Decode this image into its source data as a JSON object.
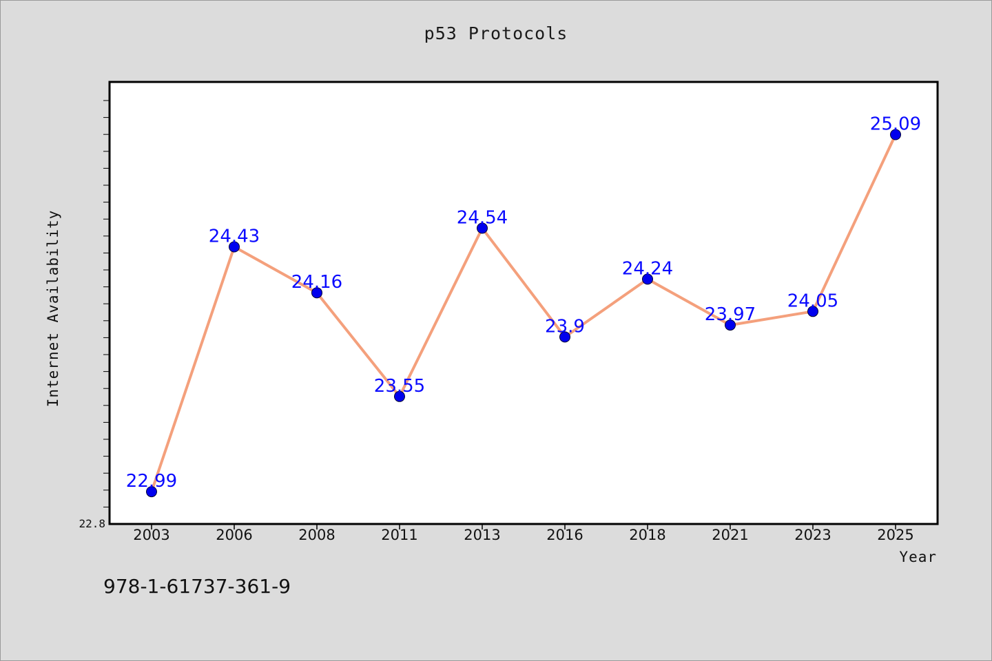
{
  "title": "p53 Protocols",
  "footer_text": "978-1-61737-361-9",
  "chart_data": {
    "type": "line",
    "title": "p53 Protocols",
    "xlabel": "Year",
    "ylabel": "Internet Availability",
    "categories": [
      "2003",
      "2006",
      "2008",
      "2011",
      "2013",
      "2016",
      "2018",
      "2021",
      "2023",
      "2025"
    ],
    "values": [
      22.99,
      24.43,
      24.16,
      23.55,
      24.54,
      23.9,
      24.24,
      23.97,
      24.05,
      25.09
    ],
    "data_labels": [
      "22.99",
      "24.43",
      "24.16",
      "23.55",
      "24.54",
      "23.9",
      "24.24",
      "23.97",
      "24.05",
      "25.09"
    ],
    "ylim": [
      22.8,
      25.4
    ],
    "y_tick_labels": [
      "22.8"
    ],
    "grid": false,
    "line_color": "#f4a07c",
    "marker_color": "#0000ee",
    "label_color": "#0a0aff"
  }
}
